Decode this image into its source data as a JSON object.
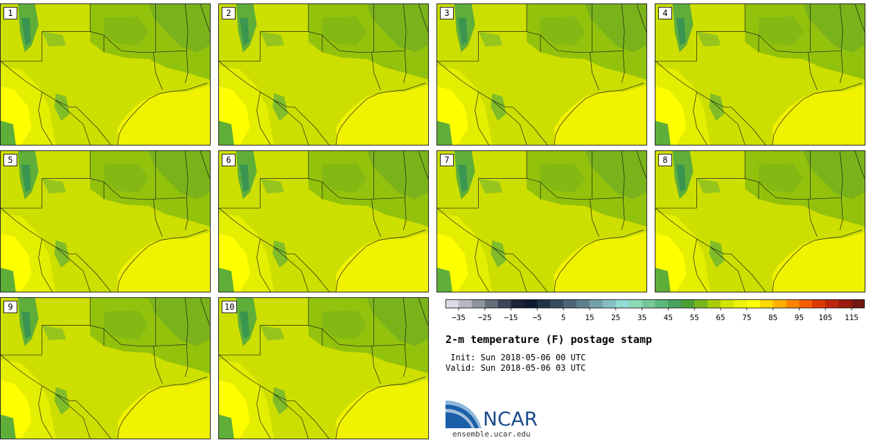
{
  "panels": [
    {
      "label": "1"
    },
    {
      "label": "2"
    },
    {
      "label": "3"
    },
    {
      "label": "4"
    },
    {
      "label": "5"
    },
    {
      "label": "6"
    },
    {
      "label": "7"
    },
    {
      "label": "8"
    },
    {
      "label": "9"
    },
    {
      "label": "10"
    }
  ],
  "colorbar": {
    "colors": [
      "#dcdce4",
      "#b7b9c2",
      "#8f939e",
      "#676c7b",
      "#3d4557",
      "#1a2338",
      "#0d1a33",
      "#1f3347",
      "#344c60",
      "#4b6577",
      "#5e808e",
      "#74a1a8",
      "#85bfc0",
      "#91dbd2",
      "#8fd9b9",
      "#76c898",
      "#5cb87c",
      "#48a25c",
      "#4c9e32",
      "#77b61d",
      "#a8cc0c",
      "#d2e300",
      "#eef200",
      "#ffff00",
      "#ffd800",
      "#ffb000",
      "#ff8500",
      "#f45c00",
      "#d93a04",
      "#bd260e",
      "#9a1a10",
      "#731812"
    ],
    "tick_labels": [
      "−35",
      "−25",
      "−15",
      "−5",
      "5",
      "15",
      "25",
      "35",
      "45",
      "55",
      "65",
      "75",
      "85",
      "95",
      "105",
      "115"
    ],
    "min": -40,
    "max": 120,
    "step": 5
  },
  "title": "2-m temperature (F) postage stamp",
  "init_text": " Init: Sun 2018-05-06 00 UTC",
  "valid_text": "Valid: Sun 2018-05-06 03 UTC",
  "logo_text": "NCAR",
  "site": "ensemble.ucar.edu",
  "map_colors": {
    "ocean": "#f0f200",
    "land_base": "#cddf00",
    "north": "#93c20c",
    "north_dark": "#7ab21b",
    "south_warm": "#e4ee00",
    "west_warm": "#ffff00",
    "mountain": "#5fae3a",
    "mountain_dark": "#3a9550",
    "border": "#1a1a1a"
  }
}
